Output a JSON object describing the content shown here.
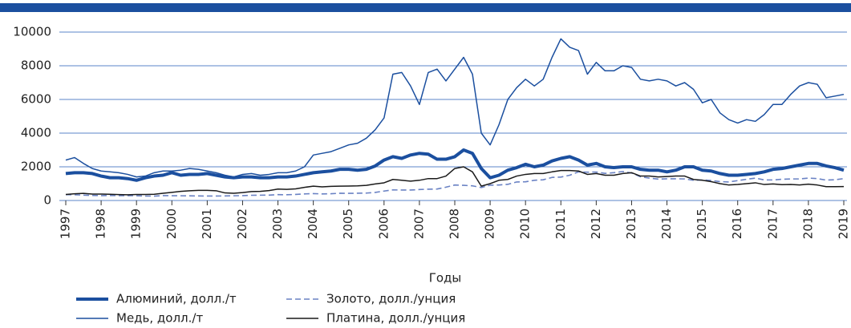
{
  "chart_data": {
    "type": "line",
    "x_label": "Годы",
    "xlim": [
      1997,
      2019
    ],
    "xticks": [
      1997,
      1998,
      1999,
      2000,
      2001,
      2002,
      2003,
      2004,
      2005,
      2006,
      2007,
      2008,
      2009,
      2010,
      2011,
      2012,
      2013,
      2014,
      2015,
      2016,
      2017,
      2018,
      2019
    ],
    "ylim": [
      0,
      10000
    ],
    "yticks": [
      0,
      2000,
      4000,
      6000,
      8000,
      10000
    ],
    "grid": true,
    "x": [
      1997,
      1997.25,
      1997.5,
      1997.75,
      1998,
      1998.25,
      1998.5,
      1998.75,
      1999,
      1999.25,
      1999.5,
      1999.75,
      2000,
      2000.25,
      2000.5,
      2000.75,
      2001,
      2001.25,
      2001.5,
      2001.75,
      2002,
      2002.25,
      2002.5,
      2002.75,
      2003,
      2003.25,
      2003.5,
      2003.75,
      2004,
      2004.25,
      2004.5,
      2004.75,
      2005,
      2005.25,
      2005.5,
      2005.75,
      2006,
      2006.25,
      2006.5,
      2006.75,
      2007,
      2007.25,
      2007.5,
      2007.75,
      2008,
      2008.25,
      2008.5,
      2008.75,
      2009,
      2009.25,
      2009.5,
      2009.75,
      2010,
      2010.25,
      2010.5,
      2010.75,
      2011,
      2011.25,
      2011.5,
      2011.75,
      2012,
      2012.25,
      2012.5,
      2012.75,
      2013,
      2013.25,
      2013.5,
      2013.75,
      2014,
      2014.25,
      2014.5,
      2014.75,
      2015,
      2015.25,
      2015.5,
      2015.75,
      2016,
      2016.25,
      2016.5,
      2016.75,
      2017,
      2017.25,
      2017.5,
      2017.75,
      2018,
      2018.25,
      2018.5,
      2018.75,
      2019
    ],
    "legend_columns": 2,
    "series": [
      {
        "name": "Алюминий, долл./т",
        "color": "#1b4f9f",
        "line_width": 4,
        "dash": false,
        "values": [
          1600,
          1650,
          1650,
          1600,
          1450,
          1350,
          1350,
          1300,
          1200,
          1350,
          1450,
          1500,
          1650,
          1500,
          1550,
          1550,
          1600,
          1500,
          1400,
          1350,
          1400,
          1400,
          1350,
          1350,
          1400,
          1400,
          1450,
          1550,
          1650,
          1700,
          1750,
          1850,
          1850,
          1800,
          1850,
          2050,
          2400,
          2600,
          2500,
          2700,
          2800,
          2750,
          2450,
          2450,
          2600,
          3000,
          2800,
          1900,
          1350,
          1500,
          1800,
          1950,
          2150,
          2000,
          2100,
          2350,
          2500,
          2600,
          2400,
          2100,
          2200,
          2000,
          1950,
          2000,
          2000,
          1850,
          1800,
          1800,
          1700,
          1800,
          2000,
          2000,
          1800,
          1750,
          1600,
          1500,
          1500,
          1550,
          1600,
          1700,
          1850,
          1900,
          2000,
          2100,
          2200,
          2200,
          2050,
          1950,
          1800
        ]
      },
      {
        "name": "Золото, долл./унция",
        "color": "#6a82c4",
        "line_width": 1.6,
        "dash": true,
        "values": [
          350,
          340,
          320,
          300,
          290,
          295,
          290,
          290,
          285,
          265,
          260,
          290,
          285,
          280,
          275,
          270,
          265,
          265,
          270,
          280,
          290,
          310,
          315,
          320,
          350,
          340,
          360,
          390,
          410,
          390,
          400,
          430,
          425,
          430,
          440,
          480,
          560,
          630,
          620,
          620,
          650,
          670,
          680,
          790,
          920,
          900,
          870,
          770,
          910,
          920,
          960,
          1100,
          1110,
          1200,
          1230,
          1370,
          1390,
          1500,
          1700,
          1680,
          1690,
          1610,
          1650,
          1720,
          1630,
          1410,
          1330,
          1270,
          1290,
          1290,
          1280,
          1200,
          1220,
          1190,
          1120,
          1100,
          1180,
          1260,
          1330,
          1220,
          1220,
          1260,
          1280,
          1280,
          1330,
          1300,
          1210,
          1230,
          1300
        ]
      },
      {
        "name": "Медь, долл./т",
        "color": "#1b4f9f",
        "line_width": 1.5,
        "dash": false,
        "values": [
          2400,
          2550,
          2200,
          1900,
          1750,
          1700,
          1650,
          1550,
          1400,
          1450,
          1650,
          1750,
          1750,
          1800,
          1900,
          1850,
          1750,
          1650,
          1500,
          1400,
          1550,
          1600,
          1500,
          1550,
          1650,
          1650,
          1750,
          2000,
          2700,
          2800,
          2900,
          3100,
          3300,
          3400,
          3700,
          4200,
          4900,
          7500,
          7600,
          6800,
          5700,
          7600,
          7800,
          7100,
          7800,
          8500,
          7500,
          4000,
          3300,
          4500,
          6000,
          6700,
          7200,
          6800,
          7200,
          8500,
          9600,
          9100,
          8900,
          7500,
          8200,
          7700,
          7700,
          8000,
          7900,
          7200,
          7100,
          7200,
          7100,
          6800,
          7000,
          6600,
          5800,
          6000,
          5200,
          4800,
          4600,
          4800,
          4700,
          5100,
          5700,
          5700,
          6300,
          6800,
          7000,
          6900,
          6100,
          6200,
          6300
        ]
      },
      {
        "name": "Платина, долл./унция",
        "color": "#1a1a1a",
        "line_width": 1.5,
        "dash": false,
        "values": [
          360,
          400,
          420,
          380,
          380,
          370,
          350,
          340,
          360,
          360,
          370,
          430,
          480,
          540,
          580,
          600,
          600,
          580,
          450,
          430,
          470,
          530,
          540,
          590,
          680,
          660,
          690,
          780,
          850,
          810,
          840,
          850,
          860,
          870,
          900,
          980,
          1050,
          1250,
          1200,
          1150,
          1200,
          1300,
          1300,
          1450,
          1900,
          2000,
          1700,
          850,
          1000,
          1200,
          1250,
          1450,
          1550,
          1600,
          1600,
          1700,
          1780,
          1780,
          1750,
          1550,
          1600,
          1500,
          1500,
          1600,
          1650,
          1450,
          1450,
          1400,
          1420,
          1450,
          1450,
          1250,
          1200,
          1120,
          1000,
          920,
          950,
          1000,
          1050,
          950,
          980,
          940,
          950,
          920,
          970,
          920,
          820,
          820,
          830
        ]
      }
    ]
  }
}
